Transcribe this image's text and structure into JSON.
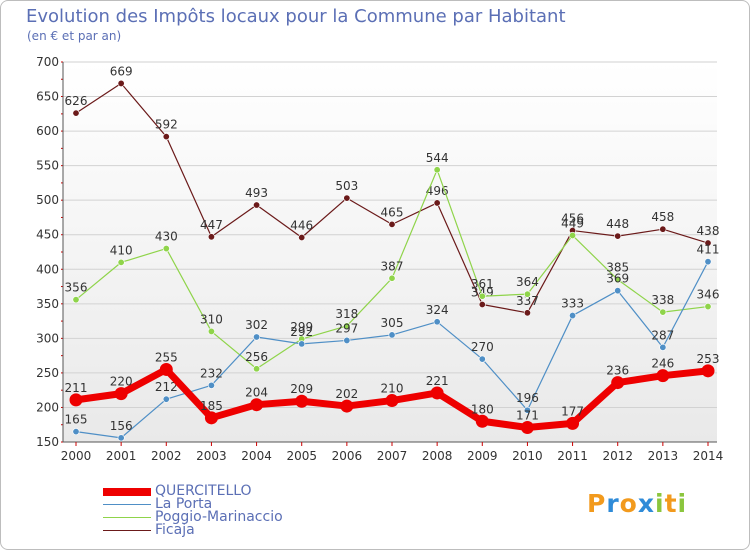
{
  "chart_data": {
    "type": "line",
    "title": "Evolution des Impôts locaux pour la Commune par Habitant",
    "subtitle": "(en € et par an)",
    "xlabel": "",
    "ylabel": "",
    "x": [
      "2000",
      "2001",
      "2002",
      "2003",
      "2004",
      "2005",
      "2006",
      "2007",
      "2008",
      "2009",
      "2010",
      "2011",
      "2012",
      "2013",
      "2014"
    ],
    "ylim": [
      150,
      700
    ],
    "yticks": [
      "150",
      "200",
      "250",
      "300",
      "350",
      "400",
      "450",
      "500",
      "550",
      "600",
      "650",
      "700"
    ],
    "grid": "horizontal",
    "series": [
      {
        "name": "Ficaja",
        "color": "#6b1a1a",
        "values": [
          626,
          669,
          592,
          447,
          493,
          446,
          503,
          465,
          496,
          349,
          337,
          456,
          448,
          458,
          438
        ],
        "labels": [
          "626",
          "669",
          "592",
          "447",
          "493",
          "446",
          "503",
          "465",
          "496",
          "349",
          "337",
          "456",
          "448",
          "458",
          "438"
        ]
      },
      {
        "name": "Poggio-Marinaccio",
        "color": "#8fd44a",
        "values": [
          356,
          410,
          430,
          310,
          256,
          299,
          318,
          387,
          544,
          361,
          364,
          449,
          385,
          338,
          346
        ],
        "labels": [
          "356",
          "410",
          "430",
          "310",
          "256",
          "299",
          "318",
          "387",
          "544",
          "361",
          "364",
          "449",
          "385",
          "338",
          "346"
        ]
      },
      {
        "name": "La Porta",
        "color": "#4f8fc6",
        "values": [
          165,
          156,
          212,
          232,
          302,
          292,
          297,
          305,
          324,
          270,
          196,
          333,
          369,
          287,
          411
        ],
        "labels": [
          "165",
          "156",
          "212",
          "232",
          "302",
          "292",
          "297",
          "305",
          "324",
          "270",
          "196",
          "333",
          "369",
          "287",
          "411"
        ]
      },
      {
        "name": "QUERCITELLO",
        "color": "#ee0000",
        "values": [
          211,
          220,
          255,
          185,
          204,
          209,
          202,
          210,
          221,
          180,
          171,
          177,
          236,
          246,
          253
        ],
        "labels": [
          "211",
          "220",
          "255",
          "185",
          "204",
          "209",
          "202",
          "210",
          "221",
          "180",
          "171",
          "177",
          "236",
          "246",
          "253"
        ]
      }
    ],
    "legend": [
      "QUERCITELLO",
      "La Porta",
      "Poggio-Marinaccio",
      "Ficaja"
    ],
    "legend_position": "bottom-left"
  },
  "logo": {
    "letters": [
      "P",
      "r",
      "o",
      "x",
      "i",
      "t",
      "i"
    ],
    "colors": [
      "#f29a1d",
      "#2f8bd8",
      "#f29a1d",
      "#2f8bd8",
      "#8bc63e",
      "#f29a1d",
      "#8bc63e"
    ]
  }
}
